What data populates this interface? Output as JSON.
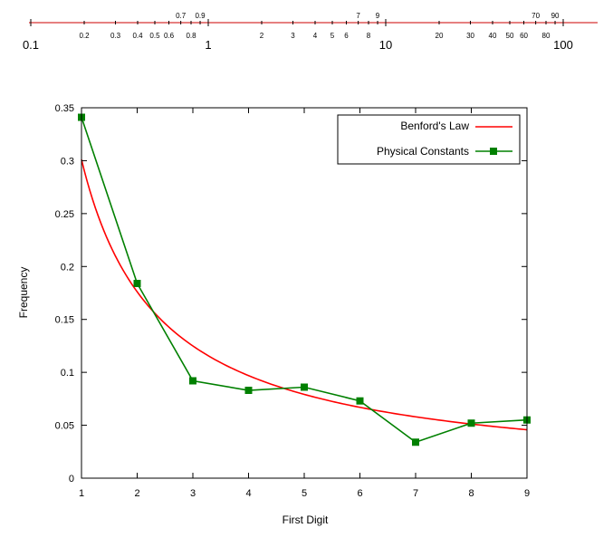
{
  "colors": {
    "ruler_line": "#cc0000",
    "benford_line": "#ff0000",
    "constants_line": "#008000",
    "axis": "#000000"
  },
  "log_ruler": {
    "min": 0.1,
    "max": 100,
    "decade_labels": [
      {
        "value": 0.1,
        "text": "0.1"
      },
      {
        "value": 1,
        "text": "1"
      },
      {
        "value": 10,
        "text": "10"
      },
      {
        "value": 100,
        "text": "100"
      }
    ],
    "minor_labels_below": [
      {
        "value": 0.2,
        "text": "0.2"
      },
      {
        "value": 0.3,
        "text": "0.3"
      },
      {
        "value": 0.4,
        "text": "0.4"
      },
      {
        "value": 0.5,
        "text": "0.5"
      },
      {
        "value": 0.6,
        "text": "0.6"
      },
      {
        "value": 0.8,
        "text": "0.8"
      },
      {
        "value": 2,
        "text": "2"
      },
      {
        "value": 3,
        "text": "3"
      },
      {
        "value": 4,
        "text": "4"
      },
      {
        "value": 5,
        "text": "5"
      },
      {
        "value": 6,
        "text": "6"
      },
      {
        "value": 8,
        "text": "8"
      },
      {
        "value": 20,
        "text": "20"
      },
      {
        "value": 30,
        "text": "30"
      },
      {
        "value": 40,
        "text": "40"
      },
      {
        "value": 50,
        "text": "50"
      },
      {
        "value": 60,
        "text": "60"
      },
      {
        "value": 80,
        "text": "80"
      }
    ],
    "minor_labels_above": [
      {
        "value": 0.7,
        "text": "0.7"
      },
      {
        "value": 0.9,
        "text": "0.9"
      },
      {
        "value": 7,
        "text": "7"
      },
      {
        "value": 9,
        "text": "9"
      },
      {
        "value": 70,
        "text": "70"
      },
      {
        "value": 90,
        "text": "90"
      }
    ]
  },
  "chart_data": {
    "type": "line",
    "title": "",
    "xlabel": "First Digit",
    "ylabel": "Frequency",
    "xlim": [
      1,
      9
    ],
    "ylim": [
      0,
      0.35
    ],
    "xticks": [
      1,
      2,
      3,
      4,
      5,
      6,
      7,
      8,
      9
    ],
    "yticks": [
      0,
      0.05,
      0.1,
      0.15,
      0.2,
      0.25,
      0.3,
      0.35
    ],
    "ytick_labels": [
      "0",
      "0.05",
      "0.1",
      "0.15",
      "0.2",
      "0.25",
      "0.3",
      "0.35"
    ],
    "grid": false,
    "legend": "top-right",
    "series": [
      {
        "name": "Benford's Law",
        "kind": "curve",
        "formula": "log10(1 + 1/d)",
        "x": [
          1,
          2,
          3,
          4,
          5,
          6,
          7,
          8,
          9
        ],
        "values": [
          0.301,
          0.176,
          0.125,
          0.097,
          0.079,
          0.067,
          0.058,
          0.051,
          0.046
        ]
      },
      {
        "name": "Physical Constants",
        "kind": "line-points",
        "x": [
          1,
          2,
          3,
          4,
          5,
          6,
          7,
          8,
          9
        ],
        "values": [
          0.341,
          0.184,
          0.092,
          0.083,
          0.086,
          0.073,
          0.034,
          0.052,
          0.055
        ]
      }
    ]
  }
}
